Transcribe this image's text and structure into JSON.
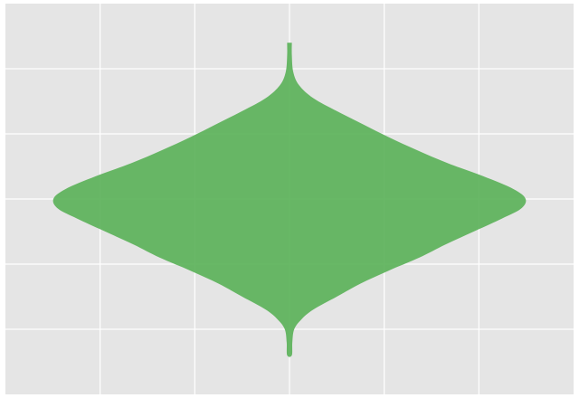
{
  "chart_data": {
    "type": "violin",
    "title": "",
    "xlabel": "",
    "ylabel": "",
    "grid": true,
    "colors": {
      "background": "#e5e5e5",
      "grid": "#ffffff",
      "violin_fill": "#5cb25a"
    },
    "violin": {
      "center": 0,
      "y_min": -2.4,
      "y_max": 2.4,
      "max_half_width": 1,
      "density": [
        {
          "y": -2.4,
          "w": 0.01
        },
        {
          "y": -2.2,
          "w": 0.012
        },
        {
          "y": -2.0,
          "w": 0.02
        },
        {
          "y": -1.85,
          "w": 0.05
        },
        {
          "y": -1.7,
          "w": 0.1
        },
        {
          "y": -1.5,
          "w": 0.2
        },
        {
          "y": -1.3,
          "w": 0.3
        },
        {
          "y": -1.1,
          "w": 0.42
        },
        {
          "y": -0.9,
          "w": 0.55
        },
        {
          "y": -0.7,
          "w": 0.66
        },
        {
          "y": -0.5,
          "w": 0.78
        },
        {
          "y": -0.3,
          "w": 0.9
        },
        {
          "y": -0.15,
          "w": 0.98
        },
        {
          "y": 0.0,
          "w": 1.0
        },
        {
          "y": 0.15,
          "w": 0.95
        },
        {
          "y": 0.35,
          "w": 0.82
        },
        {
          "y": 0.55,
          "w": 0.67
        },
        {
          "y": 0.75,
          "w": 0.54
        },
        {
          "y": 0.95,
          "w": 0.42
        },
        {
          "y": 1.15,
          "w": 0.31
        },
        {
          "y": 1.35,
          "w": 0.2
        },
        {
          "y": 1.55,
          "w": 0.1
        },
        {
          "y": 1.75,
          "w": 0.04
        },
        {
          "y": 1.95,
          "w": 0.016
        },
        {
          "y": 2.2,
          "w": 0.01
        },
        {
          "y": 2.4,
          "w": 0.01
        }
      ]
    },
    "x_grid_values": [
      -2,
      -1,
      0,
      1,
      2
    ],
    "y_grid_values": [
      -2,
      -1,
      0,
      1,
      2
    ],
    "xlim": [
      -3,
      3
    ],
    "ylim": [
      -3,
      3
    ]
  }
}
